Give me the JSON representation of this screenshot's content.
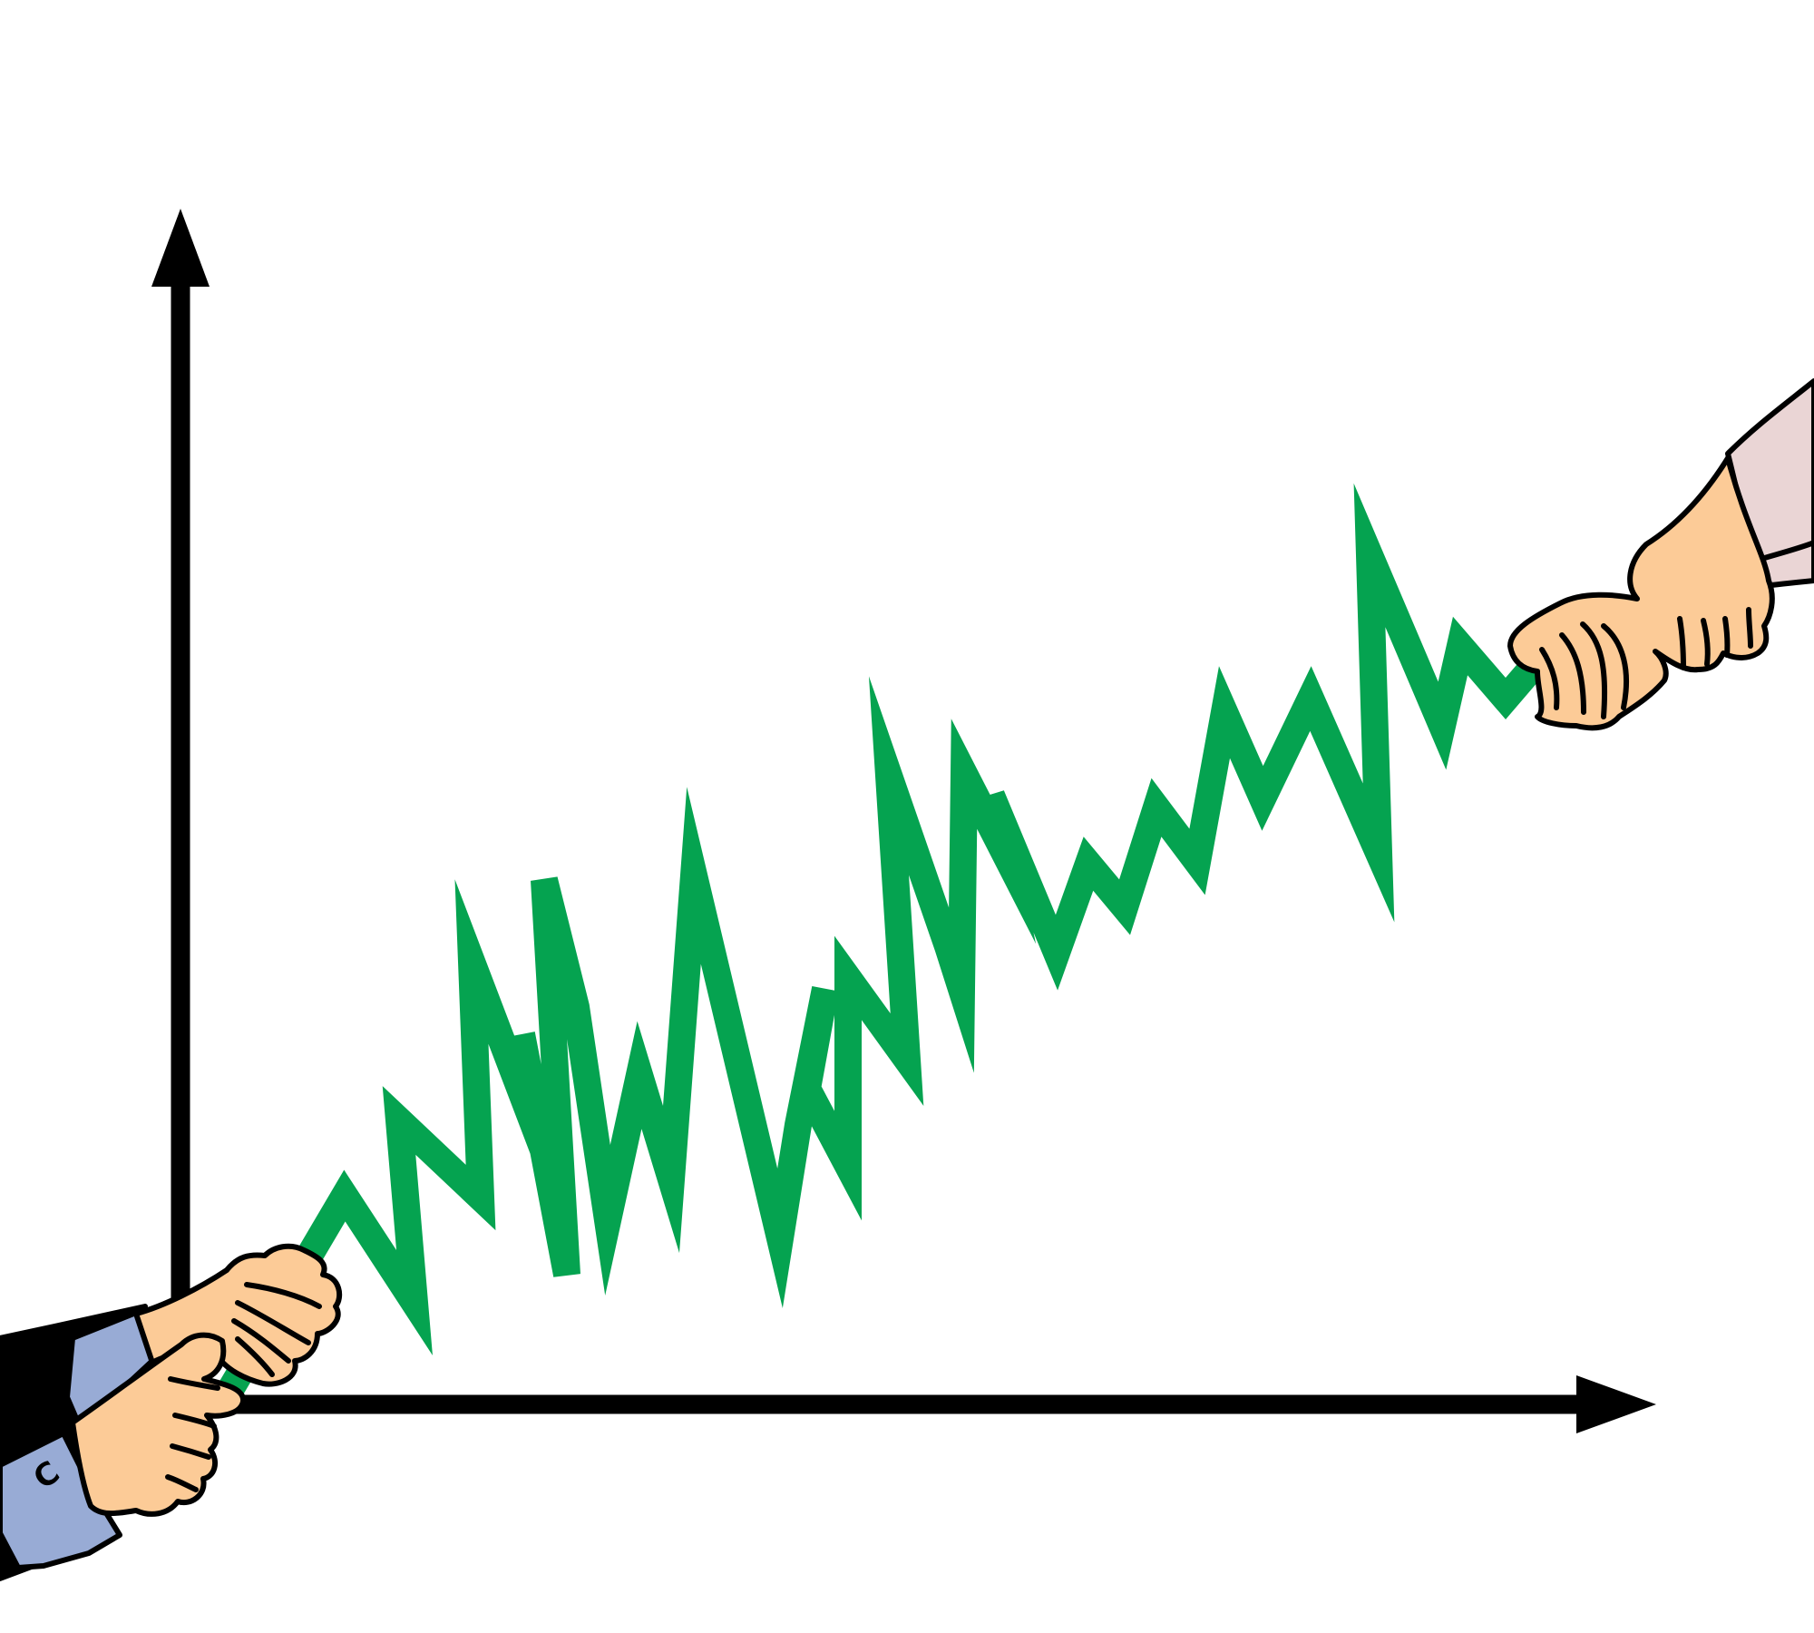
{
  "illustration": {
    "subject": "tug-of-war-over-stock-chart",
    "line_color": "#05A350",
    "axis_color": "#000000",
    "background_color": "#ffffff",
    "left_hands": {
      "skin_color": "#FCCB97",
      "sleeve_color": "#98ABD5",
      "jacket_color": "#000000",
      "cufflink_letter": "C"
    },
    "right_hand": {
      "skin_color": "#FCCB97",
      "sleeve_color": "#EAD5D5"
    },
    "icons": [
      "y-axis-arrow-icon",
      "x-axis-arrow-icon",
      "hand-icon"
    ]
  }
}
